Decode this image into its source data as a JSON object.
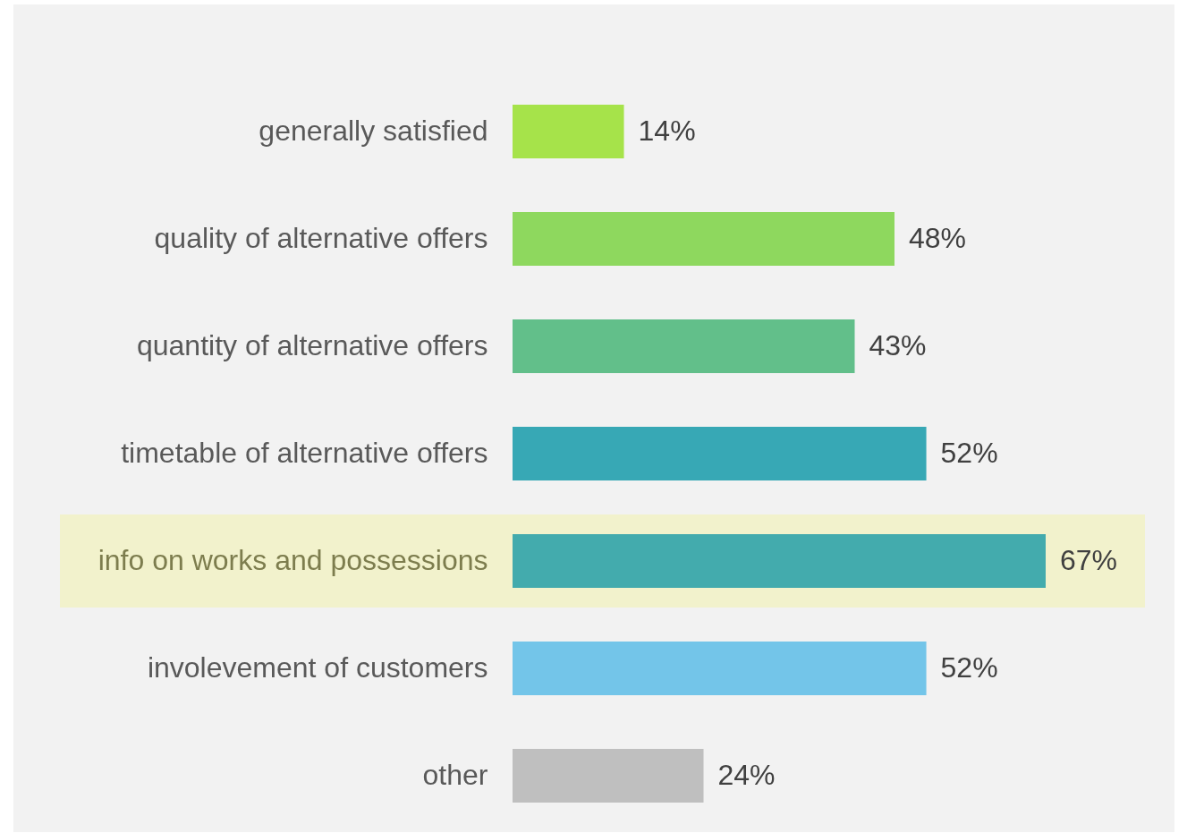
{
  "chart_data": {
    "type": "bar",
    "orientation": "horizontal",
    "categories": [
      "generally satisfied",
      "quality of alternative offers",
      "quantity of alternative offers",
      "timetable of alternative offers",
      "info on works and possessions",
      "involevement of customers",
      "other"
    ],
    "values": [
      14,
      48,
      43,
      52,
      67,
      52,
      24
    ],
    "colors": [
      "#a6e34a",
      "#8ed85e",
      "#62bf8a",
      "#37a8b5",
      "#43abad",
      "#73c5e9",
      "#bfbfbf"
    ],
    "value_labels": [
      "14%",
      "48%",
      "43%",
      "52%",
      "67%",
      "52%",
      "24%"
    ],
    "tick_labels": "y",
    "bands": [
      {
        "axis": "y",
        "from": "info on works and possessions",
        "to": "info on works and possessions",
        "color": "#f2f2cc"
      }
    ]
  }
}
